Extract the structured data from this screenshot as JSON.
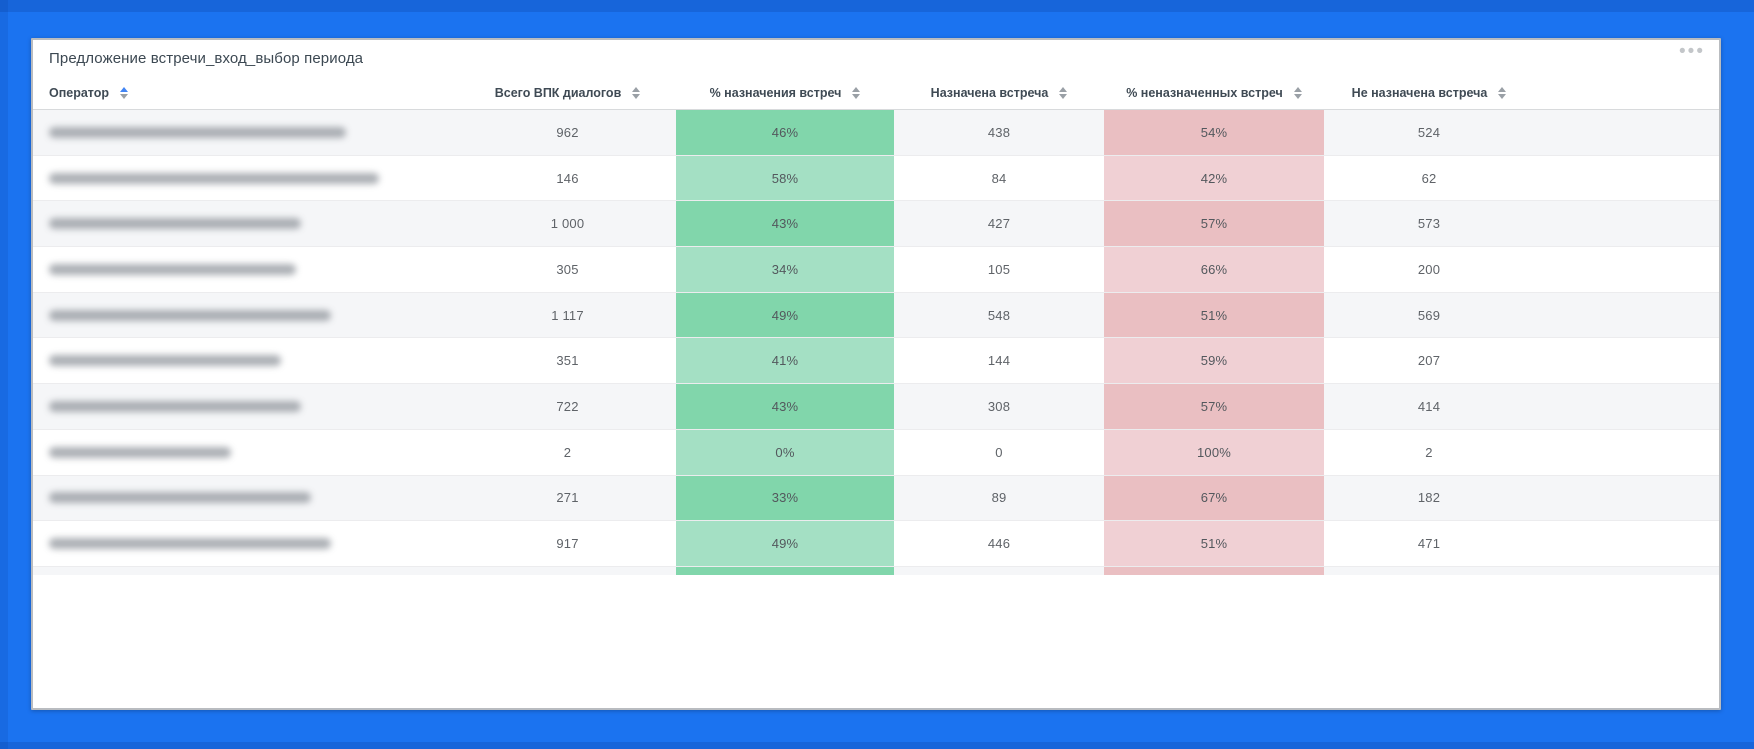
{
  "frame": {
    "background_color": "#1b73f0"
  },
  "card": {
    "title": "Предложение встречи_вход_выбор периода",
    "more_label": "•••"
  },
  "table": {
    "columns": [
      {
        "key": "operator",
        "label": "Оператор",
        "sort": "asc",
        "align": "left",
        "tint": "none"
      },
      {
        "key": "dialogs",
        "label": "Всего ВПК диалогов",
        "sort": "none",
        "align": "center",
        "tint": "none"
      },
      {
        "key": "pct_assigned",
        "label": "% назначения встреч",
        "sort": "none",
        "align": "center",
        "tint": "green"
      },
      {
        "key": "assigned",
        "label": "Назначена встреча",
        "sort": "none",
        "align": "center",
        "tint": "none"
      },
      {
        "key": "pct_unassigned",
        "label": "% неназначенных встреч",
        "sort": "none",
        "align": "center",
        "tint": "red"
      },
      {
        "key": "unassigned",
        "label": "Не назначена встреча",
        "sort": "none",
        "align": "center",
        "tint": "none"
      }
    ],
    "rows": [
      {
        "operator_blurred": true,
        "name_blur_width": 297,
        "dialogs": "962",
        "pct_assigned": "46%",
        "assigned": "438",
        "pct_unassigned": "54%",
        "unassigned": "524"
      },
      {
        "operator_blurred": true,
        "name_blur_width": 330,
        "dialogs": "146",
        "pct_assigned": "58%",
        "assigned": "84",
        "pct_unassigned": "42%",
        "unassigned": "62"
      },
      {
        "operator_blurred": true,
        "name_blur_width": 252,
        "dialogs": "1 000",
        "pct_assigned": "43%",
        "assigned": "427",
        "pct_unassigned": "57%",
        "unassigned": "573"
      },
      {
        "operator_blurred": true,
        "name_blur_width": 247,
        "dialogs": "305",
        "pct_assigned": "34%",
        "assigned": "105",
        "pct_unassigned": "66%",
        "unassigned": "200"
      },
      {
        "operator_blurred": true,
        "name_blur_width": 282,
        "dialogs": "1 117",
        "pct_assigned": "49%",
        "assigned": "548",
        "pct_unassigned": "51%",
        "unassigned": "569"
      },
      {
        "operator_blurred": true,
        "name_blur_width": 232,
        "dialogs": "351",
        "pct_assigned": "41%",
        "assigned": "144",
        "pct_unassigned": "59%",
        "unassigned": "207"
      },
      {
        "operator_blurred": true,
        "name_blur_width": 252,
        "dialogs": "722",
        "pct_assigned": "43%",
        "assigned": "308",
        "pct_unassigned": "57%",
        "unassigned": "414"
      },
      {
        "operator_blurred": true,
        "name_blur_width": 182,
        "dialogs": "2",
        "pct_assigned": "0%",
        "assigned": "0",
        "pct_unassigned": "100%",
        "unassigned": "2"
      },
      {
        "operator_blurred": true,
        "name_blur_width": 262,
        "dialogs": "271",
        "pct_assigned": "33%",
        "assigned": "89",
        "pct_unassigned": "67%",
        "unassigned": "182"
      },
      {
        "operator_blurred": true,
        "name_blur_width": 282,
        "dialogs": "917",
        "pct_assigned": "49%",
        "assigned": "446",
        "pct_unassigned": "51%",
        "unassigned": "471"
      }
    ],
    "clipped_extra_row": true,
    "colors": {
      "sort_active": "#4285f4",
      "green_odd": "#81d6ab",
      "green_even": "#a4e0c4",
      "red_odd": "#eabfc2",
      "red_even": "#f0d0d4",
      "row_odd_bg": "#f5f6f8",
      "row_even_bg": "#ffffff"
    }
  }
}
